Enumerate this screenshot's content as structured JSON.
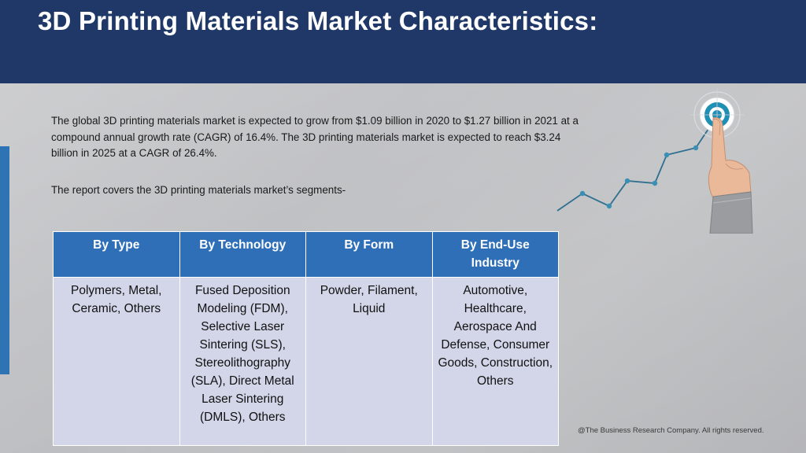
{
  "header": {
    "title": "3D Printing Materials Market Characteristics:"
  },
  "body": {
    "paragraph": "The global 3D printing materials market is expected to grow from $1.09 billion in 2020 to $1.27 billion in 2021 at a compound annual growth rate (CAGR) of 16.4%. The 3D printing materials market is expected to reach $3.24 billion in 2025 at a CAGR of 26.4%.",
    "segments_intro": "The report covers the 3D printing materials market’s segments-"
  },
  "table": {
    "headers": [
      "By Type",
      "By Technology",
      "By Form",
      "By End-Use Industry"
    ],
    "cells": [
      "Polymers, Metal, Ceramic, Others",
      "Fused Deposition Modeling (FDM), Selective Laser Sintering (SLS), Stereolithography (SLA), Direct Metal Laser Sintering (DMLS), Others",
      "Powder, Filament, Liquid",
      "Automotive, Healthcare, Aerospace And Defense, Consumer Goods, Construction, Others"
    ]
  },
  "graphic": {
    "icon": "target-growth-hand-icon"
  },
  "footer": {
    "copyright": "@The Business Research Company. All rights reserved."
  },
  "colors": {
    "header_bg": "#1f3868",
    "table_header_bg": "#2e6fb8",
    "table_cell_bg": "#d2d6e8",
    "accent": "#2e74b5"
  }
}
